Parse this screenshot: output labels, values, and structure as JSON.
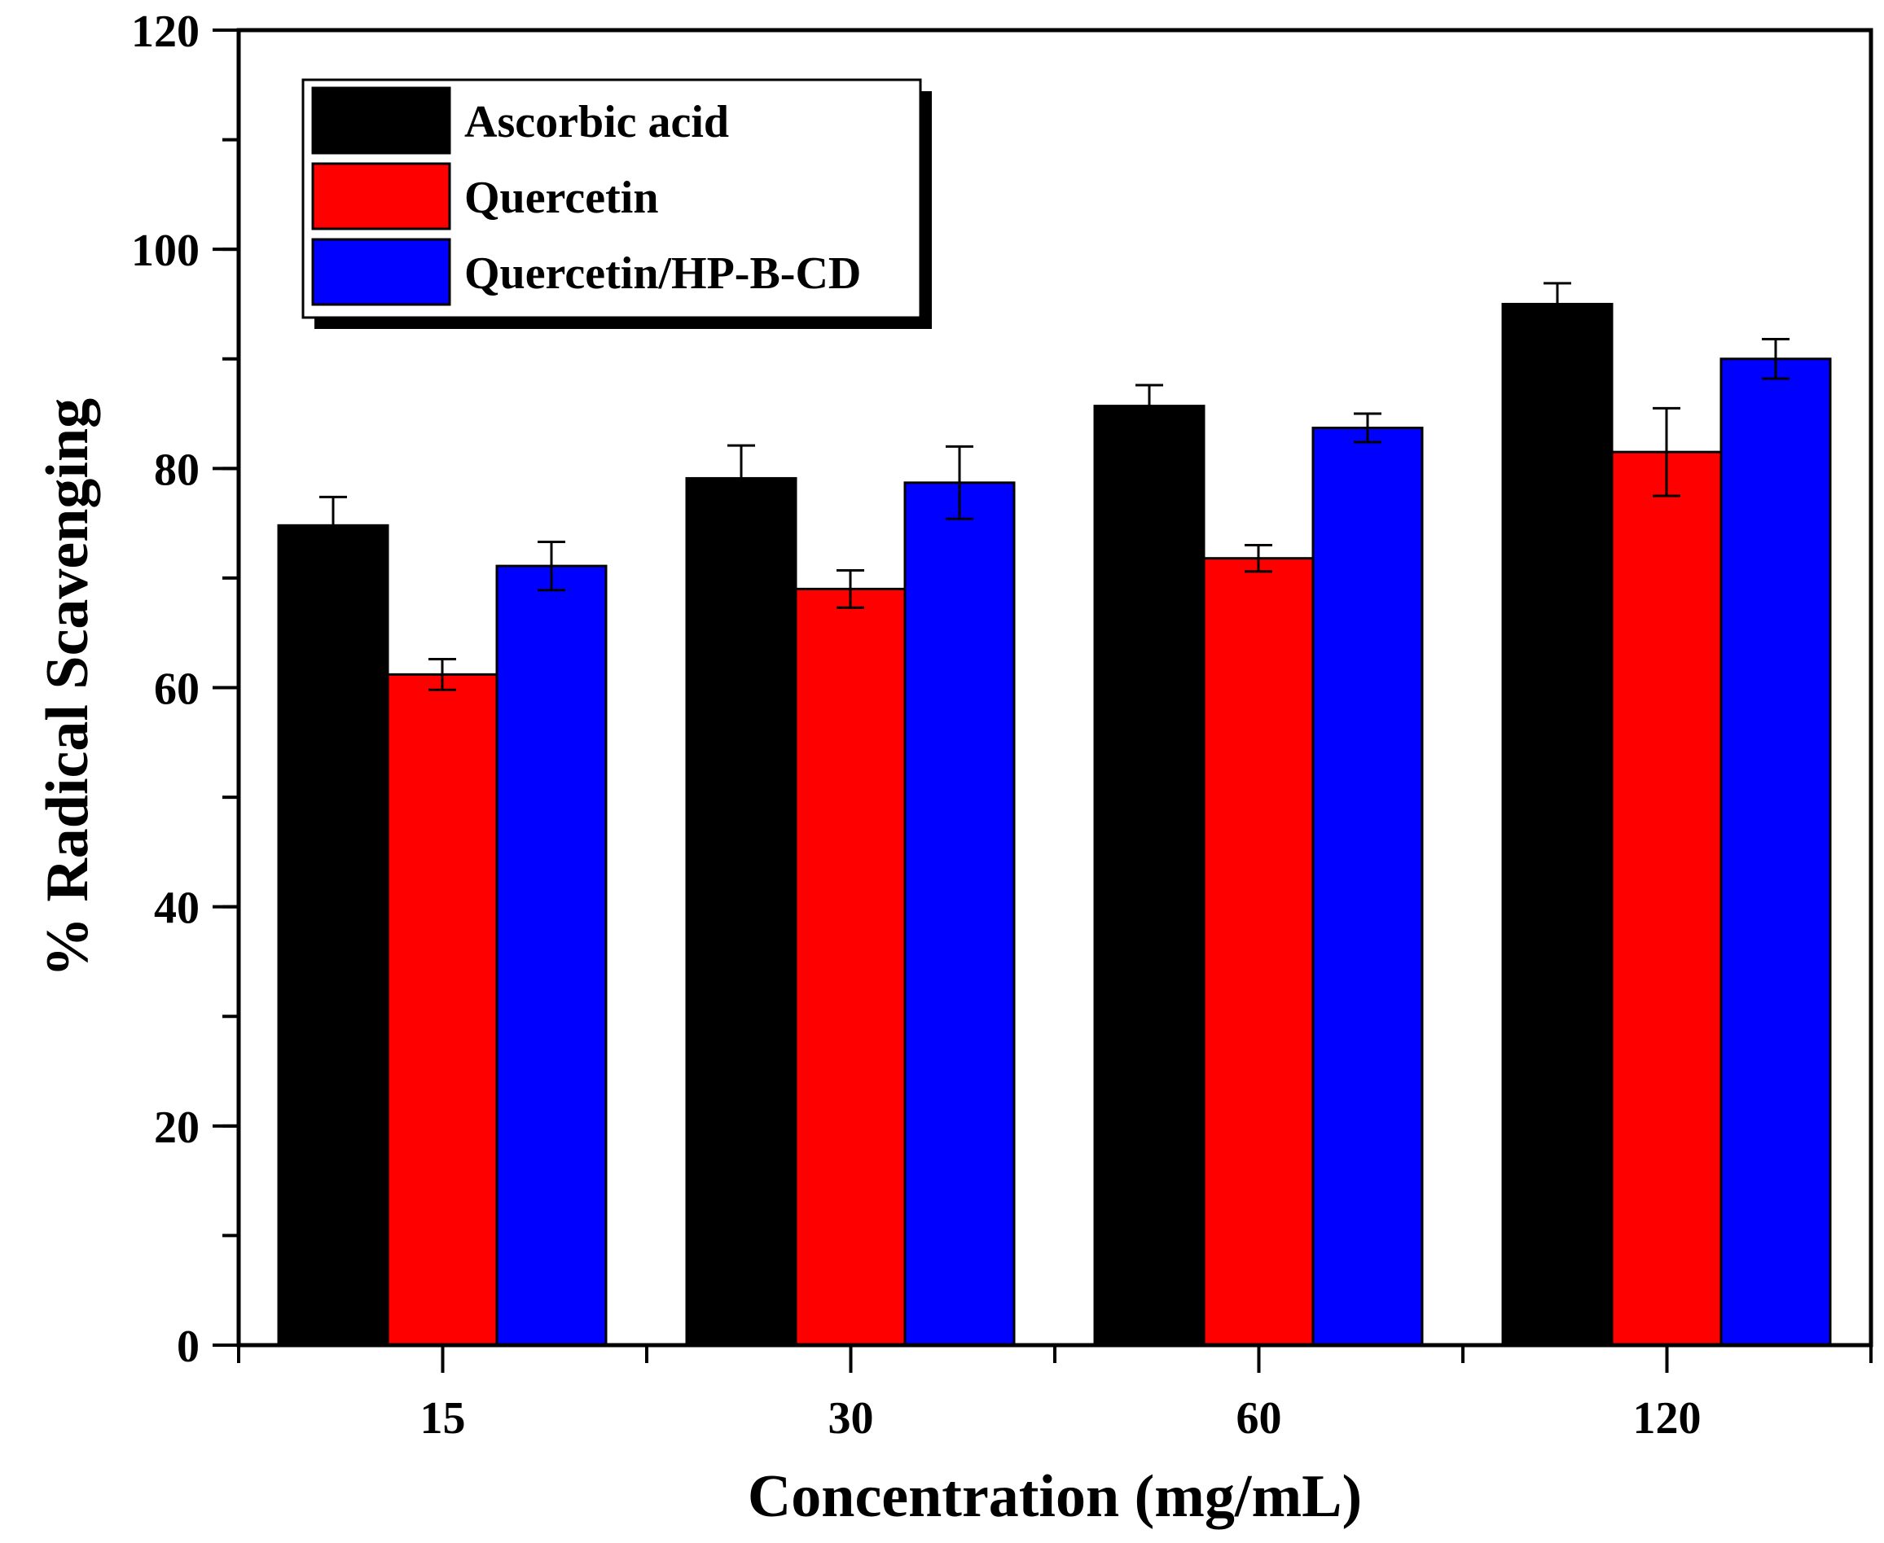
{
  "chart_data": {
    "type": "bar",
    "title": "",
    "xlabel": "Concentration (mg/mL)",
    "ylabel": "% Radical Scavenging",
    "ylim": [
      0,
      120
    ],
    "yticks": [
      "0",
      "20",
      "40",
      "60",
      "80",
      "100",
      "120"
    ],
    "yminor_step": 10,
    "grid": false,
    "legend_position": "top-left",
    "categories": [
      "15",
      "30",
      "60",
      "120"
    ],
    "series": [
      {
        "name": "Ascorbic acid",
        "color": "#000000",
        "values": [
          74.8,
          79.1,
          85.7,
          95.0
        ],
        "errors": [
          2.6,
          3.0,
          1.9,
          1.9
        ]
      },
      {
        "name": "Quercetin",
        "color": "#ff0000",
        "values": [
          61.2,
          69.0,
          71.8,
          81.5
        ],
        "errors": [
          1.4,
          1.7,
          1.2,
          4.0
        ]
      },
      {
        "name": "Quercetin/HP-B-CD",
        "color": "#0000ff",
        "values": [
          71.1,
          78.7,
          83.7,
          90.0
        ],
        "errors": [
          2.2,
          3.3,
          1.3,
          1.8
        ]
      }
    ]
  }
}
